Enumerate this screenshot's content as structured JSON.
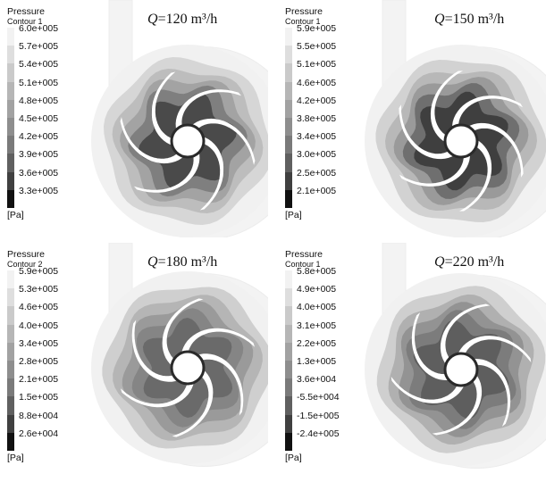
{
  "panels": [
    {
      "legend_title": "Pressure",
      "legend_subtitle": "Contour 1",
      "flow_symbol": "Q",
      "flow_text": "=120 m³/h",
      "unit": "[Pa]",
      "values": [
        "6.0e+005",
        "5.7e+005",
        "5.4e+005",
        "5.1e+005",
        "4.8e+005",
        "4.5e+005",
        "4.2e+005",
        "3.9e+005",
        "3.6e+005",
        "3.3e+005"
      ],
      "colors": [
        "#f2f2f2",
        "#dedede",
        "#cacaca",
        "#b6b6b6",
        "#a2a2a2",
        "#8e8e8e",
        "#7a7a7a",
        "#606060",
        "#404040",
        "#111111"
      ]
    },
    {
      "legend_title": "Pressure",
      "legend_subtitle": "Contour 1",
      "flow_symbol": "Q",
      "flow_text": "=150 m³/h",
      "unit": "[Pa]",
      "values": [
        "5.9e+005",
        "5.5e+005",
        "5.1e+005",
        "4.6e+005",
        "4.2e+005",
        "3.8e+005",
        "3.4e+005",
        "3.0e+005",
        "2.5e+005",
        "2.1e+005"
      ],
      "colors": [
        "#f2f2f2",
        "#dedede",
        "#cacaca",
        "#b6b6b6",
        "#a2a2a2",
        "#8e8e8e",
        "#7a7a7a",
        "#606060",
        "#404040",
        "#111111"
      ]
    },
    {
      "legend_title": "Pressure",
      "legend_subtitle": "Contour 2",
      "flow_symbol": "Q",
      "flow_text": "=180 m³/h",
      "unit": "[Pa]",
      "values": [
        "5.9e+005",
        "5.3e+005",
        "4.6e+005",
        "4.0e+005",
        "3.4e+005",
        "2.8e+005",
        "2.1e+005",
        "1.5e+005",
        "8.8e+004",
        "2.6e+004"
      ],
      "colors": [
        "#f2f2f2",
        "#dedede",
        "#cacaca",
        "#b6b6b6",
        "#a2a2a2",
        "#8e8e8e",
        "#7a7a7a",
        "#606060",
        "#404040",
        "#111111"
      ]
    },
    {
      "legend_title": "Pressure",
      "legend_subtitle": "Contour 1",
      "flow_symbol": "Q",
      "flow_text": "=220 m³/h",
      "unit": "[Pa]",
      "values": [
        "5.8e+005",
        "4.9e+005",
        "4.0e+005",
        "3.1e+005",
        "2.2e+005",
        "1.3e+005",
        "3.6e+004",
        "-5.5e+004",
        "-1.5e+005",
        "-2.4e+005"
      ],
      "colors": [
        "#f2f2f2",
        "#dedede",
        "#cacaca",
        "#b6b6b6",
        "#a2a2a2",
        "#8e8e8e",
        "#7a7a7a",
        "#606060",
        "#404040",
        "#111111"
      ]
    }
  ]
}
